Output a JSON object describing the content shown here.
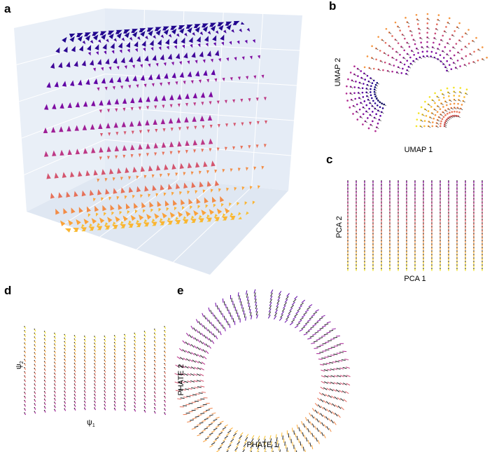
{
  "figure": {
    "panels": [
      {
        "label": "a"
      },
      {
        "label": "b",
        "x_label": "UMAP 1",
        "y_label": "UMAP 2"
      },
      {
        "label": "c",
        "x_label": "PCA 1",
        "y_label": "PCA 2"
      },
      {
        "label": "d",
        "x_label": {
          "symbol": "ψ",
          "subscript": "1"
        },
        "y_label": {
          "symbol": "ψ",
          "subscript": "2"
        }
      },
      {
        "label": "e",
        "x_label": "PHATE 1",
        "y_label": "PHATE 2"
      }
    ]
  }
}
